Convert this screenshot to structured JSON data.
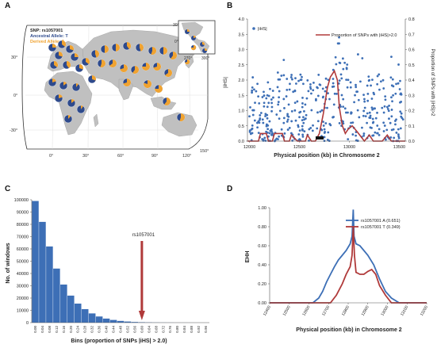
{
  "panel_labels": {
    "a": "A",
    "b": "B",
    "c": "C",
    "d": "D"
  },
  "panel_a": {
    "legend": {
      "snp": "SNP: rs1057001",
      "ancestral": "Ancestral Allele: T",
      "derived": "Derived Allele: A"
    },
    "lat_labels": [
      "30°",
      "0°",
      "-30°"
    ],
    "lon_labels": [
      "0°",
      "30°",
      "60°",
      "90°",
      "120°",
      "150°"
    ],
    "inset": {
      "lat_labels": [
        "30°",
        "0°"
      ],
      "lon_labels": [
        "270°",
        "300°"
      ]
    },
    "colors": {
      "ancestral": "#2e4a8c",
      "derived": "#f0a331",
      "land": "#c0c0c0"
    },
    "pies": [
      {
        "derived": 0.25
      },
      {
        "derived": 0.35
      },
      {
        "derived": 0.3
      },
      {
        "derived": 0.3
      },
      {
        "derived": 0.25
      },
      {
        "derived": 0.35
      },
      {
        "derived": 0.4
      },
      {
        "derived": 0.3
      },
      {
        "derived": 0.35
      },
      {
        "derived": 0.45
      },
      {
        "derived": 0.5
      },
      {
        "derived": 0.5
      },
      {
        "derived": 0.4
      },
      {
        "derived": 0.45
      },
      {
        "derived": 0.55
      },
      {
        "derived": 0.5
      },
      {
        "derived": 0.6
      },
      {
        "derived": 0.55
      },
      {
        "derived": 0.65
      },
      {
        "derived": 0.7
      },
      {
        "derived": 0.6
      },
      {
        "derived": 0.75
      },
      {
        "derived": 0.7
      },
      {
        "derived": 0.65
      },
      {
        "derived": 0.7
      },
      {
        "derived": 0.8
      },
      {
        "derived": 0.75
      },
      {
        "derived": 0.6
      },
      {
        "derived": 0.55
      },
      {
        "derived": 0.2
      },
      {
        "derived": 0.15
      },
      {
        "derived": 0.1
      },
      {
        "derived": 0.2
      },
      {
        "derived": 0.15
      },
      {
        "derived": 0.1
      },
      {
        "derived": 0.12
      },
      {
        "derived": 0.3
      },
      {
        "derived": 0.7
      },
      {
        "derived": 0.75
      },
      {
        "derived": 0.25
      },
      {
        "derived": 0.2
      },
      {
        "derived": 0.3
      },
      {
        "derived": 0.25
      }
    ]
  },
  "chart_data": [
    {
      "type": "scatter",
      "xlabel": "Physical position (kb) in Chromosome 2",
      "ylabel": "|iHS|",
      "y2label": "Proportion of SNPs with |iHS|>2",
      "xticks": [
        "12000",
        "12500",
        "13000",
        "13500"
      ],
      "yticks": [
        "0.0",
        "0.5",
        "1.0",
        "1.5",
        "2.0",
        "2.5",
        "3.0",
        "3.5",
        "4.0"
      ],
      "y2ticks": [
        "0.0",
        "0.1",
        "0.2",
        "0.3",
        "0.4",
        "0.5",
        "0.6",
        "0.7",
        "0.8"
      ],
      "xlim": [
        11980,
        13560
      ],
      "ylim": [
        0,
        4.0
      ],
      "y2lim": [
        0,
        0.8
      ],
      "legend": [
        "|iHS|",
        "Proportion of SNPs with |iHS|>2.0"
      ],
      "colors": {
        "points": "#3d6fb6",
        "line": "#b03a3a"
      },
      "line_series": {
        "name": "Proportion of SNPs with |iHS|>2.0",
        "x": [
          11980,
          12090,
          12110,
          12170,
          12190,
          12230,
          12250,
          12330,
          12350,
          12400,
          12420,
          12480,
          12500,
          12560,
          12580,
          12620,
          12660,
          12700,
          12740,
          12780,
          12810,
          12850,
          12880,
          12900,
          12930,
          12960,
          12990,
          13030,
          13080,
          13150,
          13200,
          13240,
          13280,
          13330,
          13380,
          13420,
          13470,
          13560
        ],
        "values": [
          0.0,
          0.0,
          0.05,
          0.05,
          0.0,
          0.0,
          0.05,
          0.05,
          0.0,
          0.0,
          0.04,
          0.0,
          0.0,
          0.0,
          0.04,
          0.0,
          0.0,
          0.05,
          0.18,
          0.35,
          0.42,
          0.46,
          0.4,
          0.22,
          0.1,
          0.05,
          0.08,
          0.1,
          0.06,
          0.0,
          0.04,
          0.0,
          0.0,
          0.0,
          0.04,
          0.0,
          0.0,
          0.0
        ]
      }
    },
    {
      "type": "bar",
      "title": "",
      "xlabel": "Bins (proportion of SNPs |iHS| > 2.0)",
      "ylabel": "No. of windows",
      "yticks": [
        "0",
        "10000",
        "20000",
        "30000",
        "40000",
        "50000",
        "60000",
        "70000",
        "80000",
        "90000",
        "100000"
      ],
      "ylim": [
        0,
        100000
      ],
      "categories": [
        "0.00",
        "0.04",
        "0.08",
        "0.12",
        "0.16",
        "0.20",
        "0.24",
        "0.28",
        "0.32",
        "0.36",
        "0.40",
        "0.44",
        "0.48",
        "0.52",
        "0.56",
        "0.60",
        "0.64",
        "0.68",
        "0.72",
        "0.76",
        "0.80",
        "0.84",
        "0.88",
        "0.92",
        "0.96"
      ],
      "tick_labels": [
        "0.00",
        "0.04",
        "0.08",
        "0.12",
        "0.16",
        "0.20",
        "0.24",
        "0.28",
        "0.32",
        "0.36",
        "0.40",
        "0.44",
        "0.48",
        "0.52",
        "0.56",
        "0.60",
        "0.64",
        "0.68",
        "0.72",
        "0.76",
        "0.80",
        "0.84",
        "0.88",
        "0.92",
        "0.96"
      ],
      "values": [
        99000,
        82000,
        62000,
        44000,
        31000,
        22000,
        15500,
        11000,
        7500,
        5000,
        3300,
        2200,
        1400,
        900,
        550,
        350,
        200,
        120,
        80,
        50,
        30,
        20,
        10,
        8,
        5
      ],
      "annotation": {
        "label": "rs1057001",
        "x": 0.6
      },
      "colors": {
        "bars": "#3d6fb6",
        "arrow": "#b03a3a"
      }
    },
    {
      "type": "line",
      "xlabel": "Physical position (kb) in Chromosome 2",
      "ylabel": "EHH",
      "xticks": [
        "12400",
        "12500",
        "12600",
        "12700",
        "12800",
        "12900",
        "13000",
        "13100",
        "13200"
      ],
      "yticks": [
        "0.00",
        "0.20",
        "0.40",
        "0.60",
        "0.80",
        "1.00"
      ],
      "xlim": [
        12400,
        13200
      ],
      "ylim": [
        0,
        1.0
      ],
      "series": [
        {
          "name": "rs1057001 A (0.651)",
          "color": "#3d6fb6",
          "x": [
            12400,
            12620,
            12650,
            12670,
            12690,
            12710,
            12730,
            12750,
            12770,
            12790,
            12810,
            12820,
            12826,
            12830,
            12840,
            12860,
            12880,
            12900,
            12930,
            12960,
            12990,
            13020,
            13060,
            13200
          ],
          "values": [
            0.0,
            0.0,
            0.05,
            0.12,
            0.22,
            0.3,
            0.38,
            0.45,
            0.5,
            0.55,
            0.62,
            0.7,
            0.98,
            0.7,
            0.62,
            0.6,
            0.55,
            0.5,
            0.4,
            0.25,
            0.12,
            0.05,
            0.0,
            0.0
          ]
        },
        {
          "name": "rs1057001 T (0.349)",
          "color": "#b03a3a",
          "x": [
            12400,
            12710,
            12740,
            12770,
            12790,
            12810,
            12820,
            12826,
            12832,
            12840,
            12860,
            12880,
            12900,
            12920,
            12940,
            12960,
            12990,
            13020,
            13200
          ],
          "values": [
            0.0,
            0.0,
            0.08,
            0.2,
            0.3,
            0.38,
            0.5,
            0.8,
            0.5,
            0.32,
            0.3,
            0.3,
            0.33,
            0.35,
            0.3,
            0.18,
            0.08,
            0.0,
            0.0
          ]
        }
      ]
    }
  ]
}
